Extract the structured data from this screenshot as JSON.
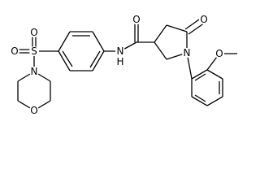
{
  "atom_labels": [
    "O",
    "O",
    "S",
    "N",
    "O",
    "N",
    "H",
    "O",
    "O",
    "N",
    "O"
  ]
}
